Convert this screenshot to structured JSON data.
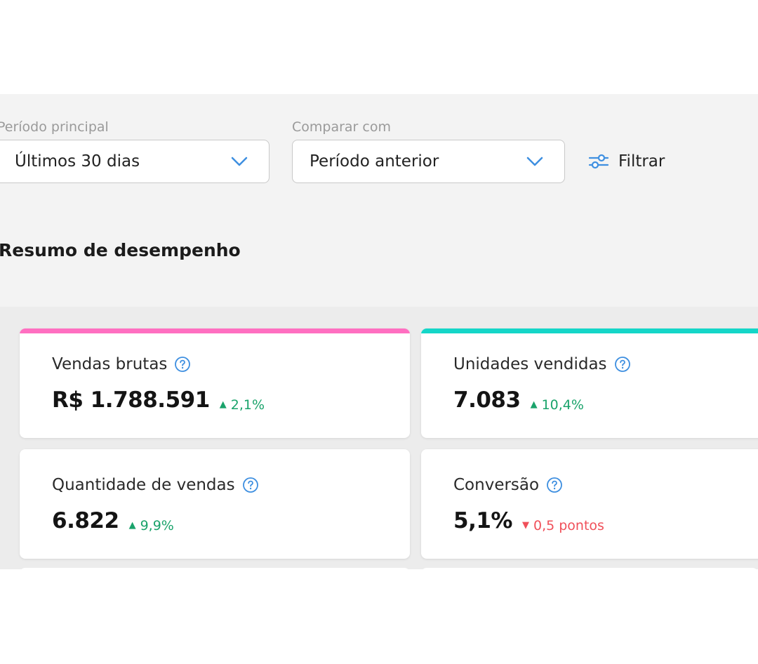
{
  "filters": {
    "main_period_label": "Período principal",
    "main_period_value": "Últimos 30 dias",
    "compare_label": "Comparar com",
    "compare_value": "Período anterior",
    "filter_button_label": "Filtrar"
  },
  "section": {
    "title": "Resumo de desempenho"
  },
  "metrics": [
    {
      "title": "Vendas brutas",
      "value": "R$ 1.788.591",
      "change": "2,1%",
      "direction": "up",
      "accent_color": "#ff6fc1"
    },
    {
      "title": "Unidades vendidas",
      "value": "7.083",
      "change": "10,4%",
      "direction": "up",
      "accent_color": "#14d6c8"
    },
    {
      "title": "Quantidade de vendas",
      "value": "6.822",
      "change": "9,9%",
      "direction": "up",
      "accent_color": ""
    },
    {
      "title": "Conversão",
      "value": "5,1%",
      "change": "0,5 pontos",
      "direction": "down",
      "accent_color": ""
    }
  ],
  "colors": {
    "positive": "#1aa36b",
    "negative": "#f0505a",
    "icon_blue": "#3e8fe0"
  }
}
